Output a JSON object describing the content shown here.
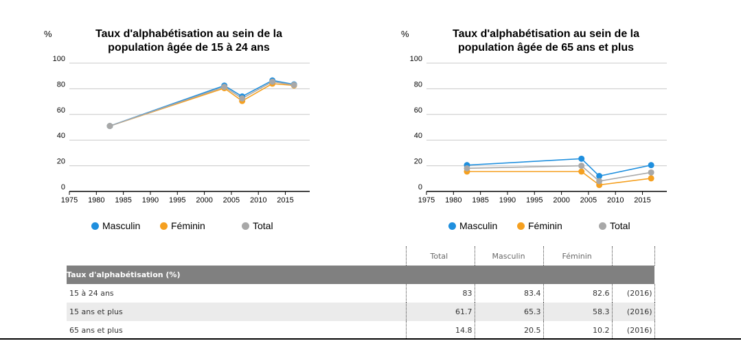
{
  "chart_data": [
    {
      "type": "line",
      "title": "Taux d'alphabétisation au sein de la population âgée de 15 à 24 ans",
      "title_lines": [
        "Taux d'alphabétisation au sein de la",
        "population âgée de 15 à 24 ans"
      ],
      "ylabel": "%",
      "xlim": [
        1975,
        2019
      ],
      "ylim": [
        0,
        100
      ],
      "x_ticks": [
        1975,
        1980,
        1985,
        1990,
        1995,
        2000,
        2005,
        2010,
        2015
      ],
      "y_ticks": [
        0,
        20,
        40,
        60,
        80,
        100
      ],
      "grid": true,
      "legend": "bottom",
      "series": [
        {
          "name": "Masculin",
          "color": "#1f8fde",
          "x": [
            1982.5,
            2003.7,
            2007,
            2012.6,
            2016.6
          ],
          "y": [
            51,
            82.5,
            74,
            86.5,
            83.4
          ]
        },
        {
          "name": "Féminin",
          "color": "#f5a020",
          "x": [
            1982.5,
            2003.7,
            2007,
            2012.6,
            2016.6
          ],
          "y": [
            51,
            80.5,
            70.5,
            84,
            82.6
          ]
        },
        {
          "name": "Total",
          "color": "#a8a8a8",
          "x": [
            1982.5,
            2003.7,
            2007,
            2012.6,
            2016.6
          ],
          "y": [
            51,
            81.5,
            72.5,
            85.5,
            83
          ]
        }
      ]
    },
    {
      "type": "line",
      "title": "Taux d'alphabétisation au sein de la population âgée de 65 ans et plus",
      "title_lines": [
        "Taux d'alphabétisation au sein de la",
        "population âgée de 65 ans et plus"
      ],
      "ylabel": "%",
      "xlim": [
        1975,
        2019
      ],
      "ylim": [
        0,
        100
      ],
      "x_ticks": [
        1975,
        1980,
        1985,
        1990,
        1995,
        2000,
        2005,
        2010,
        2015
      ],
      "y_ticks": [
        0,
        20,
        40,
        60,
        80,
        100
      ],
      "grid": true,
      "legend": "bottom",
      "series": [
        {
          "name": "Masculin",
          "color": "#1f8fde",
          "x": [
            1982.5,
            2003.7,
            2007,
            2016.6
          ],
          "y": [
            20.5,
            25.5,
            12,
            20.5
          ]
        },
        {
          "name": "Féminin",
          "color": "#f5a020",
          "x": [
            1982.5,
            2003.7,
            2007,
            2016.6
          ],
          "y": [
            15.5,
            15.5,
            5,
            10.2
          ]
        },
        {
          "name": "Total",
          "color": "#a8a8a8",
          "x": [
            1982.5,
            2003.7,
            2007,
            2016.6
          ],
          "y": [
            18,
            20,
            8,
            14.8
          ]
        }
      ]
    }
  ],
  "legend_items": [
    {
      "label": "Masculin",
      "color": "#1f8fde"
    },
    {
      "label": "Féminin",
      "color": "#f5a020"
    },
    {
      "label": "Total",
      "color": "#a8a8a8"
    }
  ],
  "table": {
    "columns": [
      "Total",
      "Masculin",
      "Féminin"
    ],
    "section": "Taux d'alphabétisation (%)",
    "rows": [
      {
        "label": "15 à 24 ans",
        "total": "83",
        "masculin": "83.4",
        "feminin": "82.6",
        "year": "(2016)"
      },
      {
        "label": "15 ans et plus",
        "total": "61.7",
        "masculin": "65.3",
        "feminin": "58.3",
        "year": "(2016)"
      },
      {
        "label": "65 ans et plus",
        "total": "14.8",
        "masculin": "20.5",
        "feminin": "10.2",
        "year": "(2016)"
      }
    ]
  }
}
